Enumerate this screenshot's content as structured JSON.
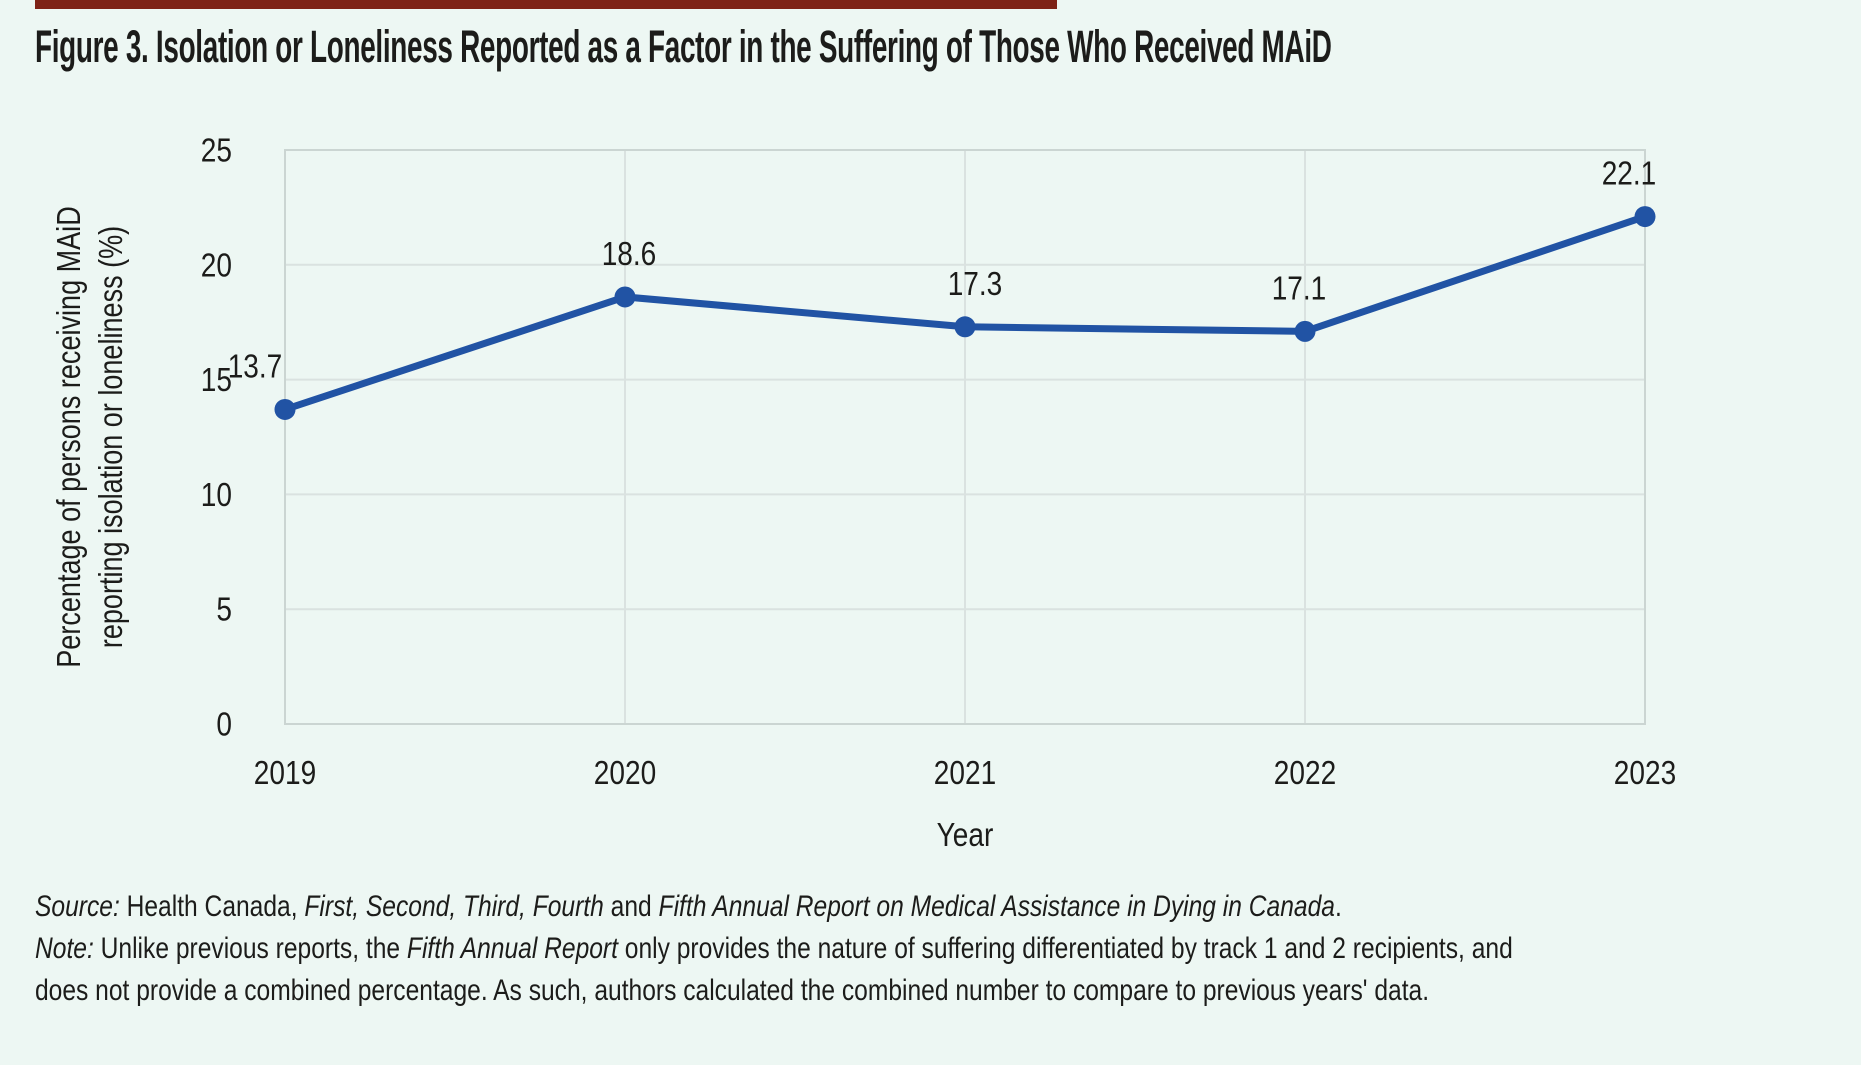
{
  "page": {
    "title": "Figure 3. Isolation or Loneliness Reported as a Factor in the Suffering of Those Who Received MAiD",
    "background_color": "#EDF7F3",
    "accent_bar_color": "#7E2317",
    "text_color": "#1C1C1A"
  },
  "chart_data": {
    "type": "line",
    "title": "Figure 3. Isolation or Loneliness Reported as a Factor in the Suffering of Those Who Received MAiD",
    "categories": [
      "2019",
      "2020",
      "2021",
      "2022",
      "2023"
    ],
    "series": [
      {
        "name": "Percentage of persons receiving MAiD reporting isolation or loneliness",
        "values": [
          13.7,
          18.6,
          17.3,
          17.1,
          22.1
        ]
      }
    ],
    "data_labels": [
      "13.7",
      "18.6",
      "17.3",
      "17.1",
      "22.1"
    ],
    "xlabel": "Year",
    "ylabel_line1": "Percentage of persons receiving MAiD",
    "ylabel_line2": "reporting isolation or loneliness (%)",
    "y_ticks": [
      0,
      5,
      10,
      15,
      20,
      25
    ],
    "ylim": [
      0,
      25
    ],
    "grid": true,
    "legend": "none",
    "line_color": "#2153A4",
    "marker_color": "#2153A4",
    "grid_color": "#DAE2E0",
    "border_color": "#CBD5D2"
  },
  "footer": {
    "lines": [
      [
        {
          "t": "Source:",
          "i": true
        },
        {
          "t": " Health Canada, ",
          "i": false
        },
        {
          "t": "First, Second, Third, Fourth",
          "i": true
        },
        {
          "t": " and ",
          "i": false
        },
        {
          "t": "Fifth Annual Report on Medical Assistance in Dying in Canada",
          "i": true
        },
        {
          "t": ".",
          "i": false
        }
      ],
      [
        {
          "t": "Note:",
          "i": true
        },
        {
          "t": " Unlike previous reports, the ",
          "i": false
        },
        {
          "t": "Fifth Annual Report",
          "i": true
        },
        {
          "t": " only provides the nature of suffering differentiated by track 1 and 2 recipients, and",
          "i": false
        }
      ],
      [
        {
          "t": "does not provide a combined percentage. As such, authors calculated the combined number to compare to previous years' data.",
          "i": false
        }
      ]
    ]
  }
}
